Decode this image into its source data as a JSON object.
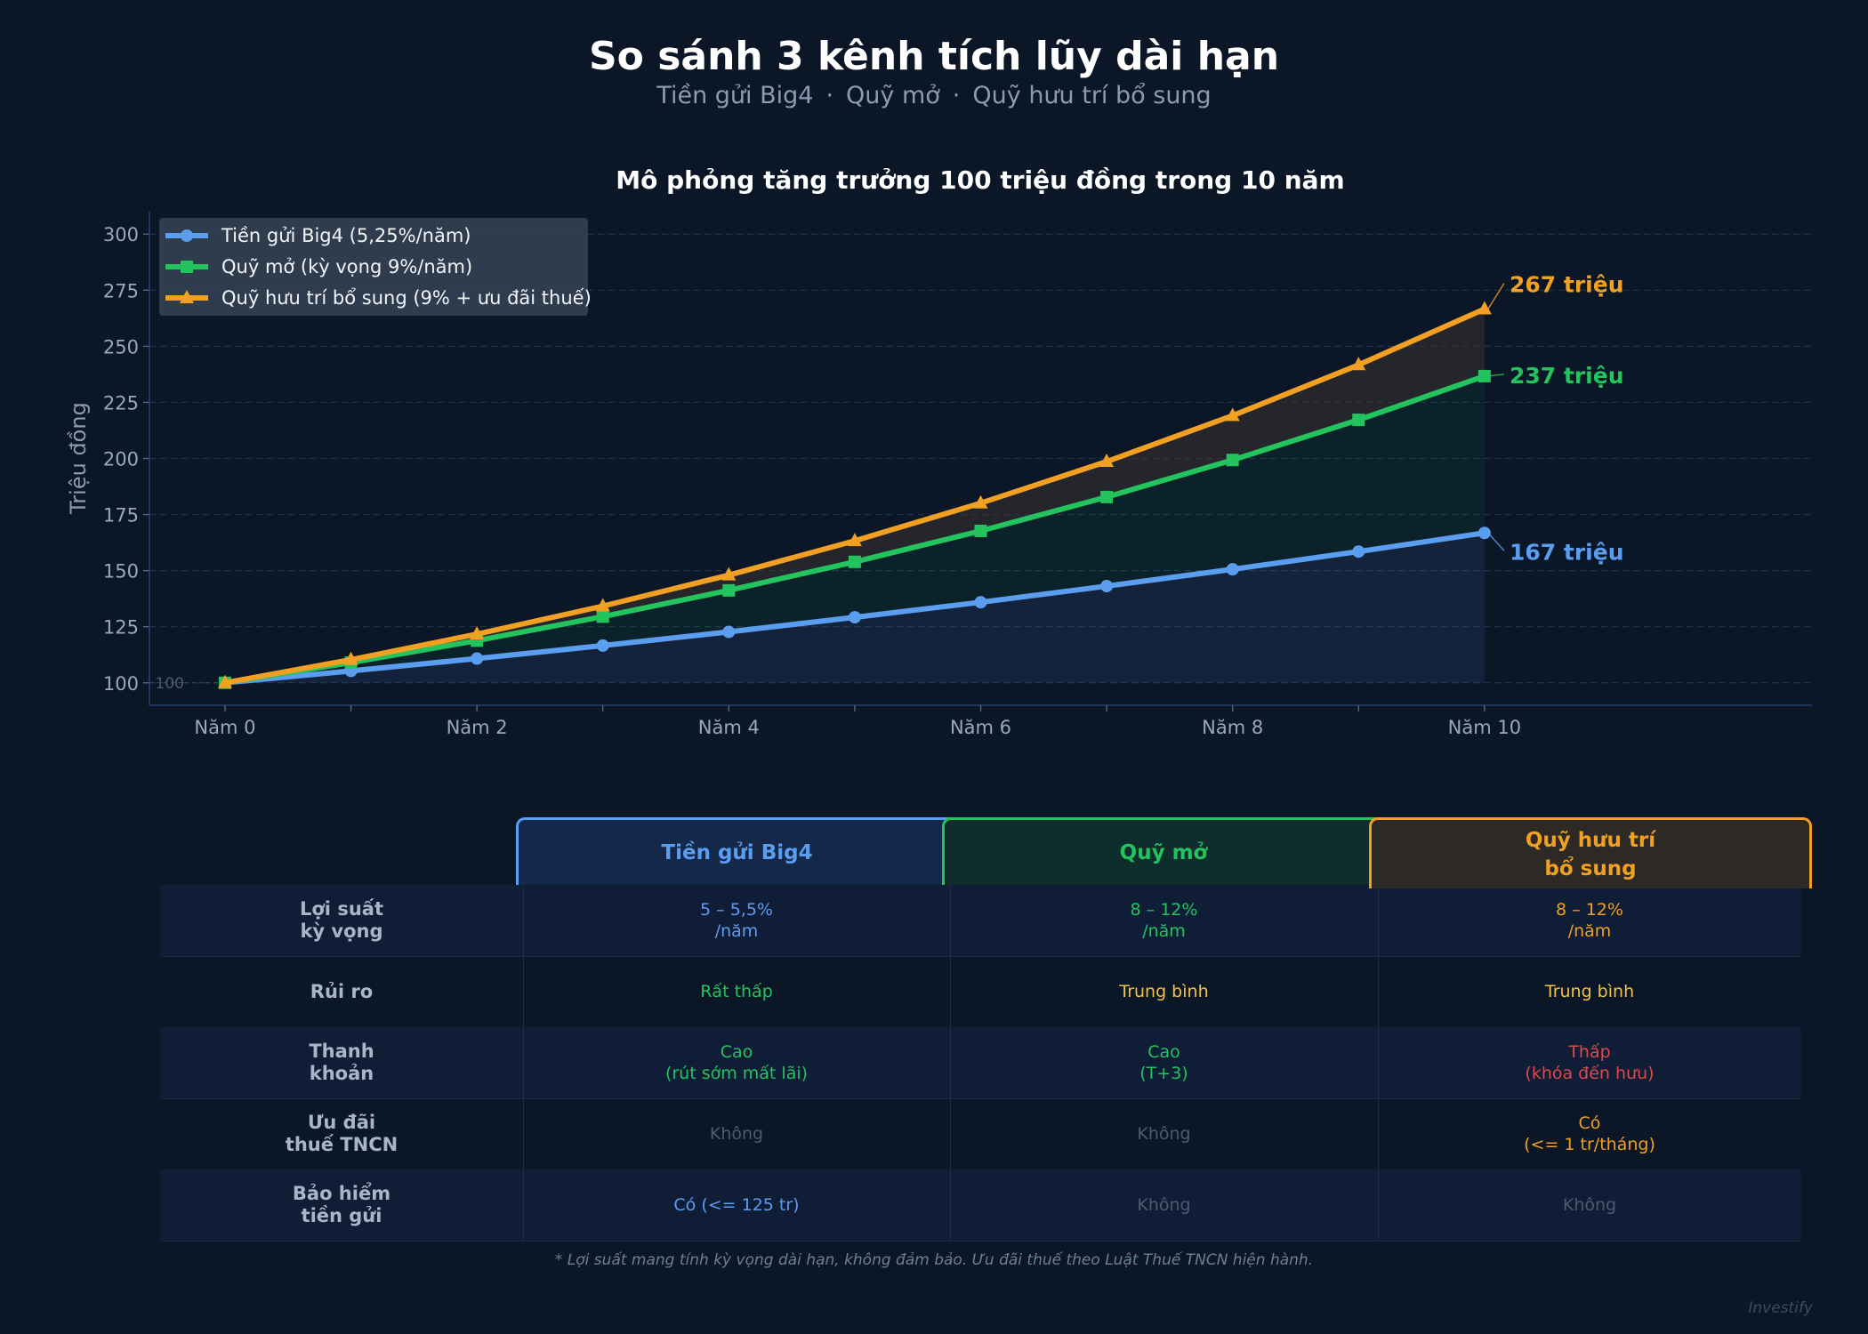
{
  "header": {
    "title": "So sánh 3 kênh tích lũy dài hạn",
    "subtitle_parts": [
      "Tiền gửi Big4",
      "Quỹ mở",
      "Quỹ hưu trí bổ sung"
    ],
    "separator": "·"
  },
  "chart_data": {
    "type": "line",
    "title": "Mô phỏng tăng trưởng 100 triệu đồng trong 10 năm",
    "ylabel": "Triệu đồng",
    "xlabel": "",
    "x": [
      0,
      1,
      2,
      3,
      4,
      5,
      6,
      7,
      8,
      9,
      10
    ],
    "x_tick_labels": {
      "0": "Năm 0",
      "2": "Năm 2",
      "4": "Năm 4",
      "6": "Năm 6",
      "8": "Năm 8",
      "10": "Năm 10"
    },
    "xlim": [
      -0.6,
      12.6
    ],
    "ylim": [
      90,
      310
    ],
    "y_ticks": [
      100,
      125,
      150,
      175,
      200,
      225,
      250,
      275,
      300
    ],
    "grid": true,
    "legend_position": "top-left",
    "baseline_label": "100",
    "series": [
      {
        "name": "Tiền gửi Big4  (5,25%/năm)",
        "color": "#5b9ef0",
        "marker": "circle",
        "values": [
          100,
          105.3,
          110.8,
          116.6,
          122.7,
          129.2,
          135.9,
          143.1,
          150.6,
          158.5,
          166.8
        ],
        "end_label": "167 triệu"
      },
      {
        "name": "Quỹ mở  (kỳ vọng 9%/năm)",
        "color": "#23c35e",
        "marker": "square",
        "values": [
          100,
          109,
          118.8,
          129.5,
          141.2,
          153.9,
          167.7,
          182.8,
          199.3,
          217.2,
          236.7
        ],
        "end_label": "237 triệu"
      },
      {
        "name": "Quỹ hưu trí bổ sung  (9% + ưu đãi thuế)",
        "color": "#f2a023",
        "marker": "triangle",
        "values": [
          100,
          110.3,
          121.7,
          134.2,
          148.0,
          163.3,
          180.1,
          198.6,
          219.1,
          241.7,
          266.6
        ],
        "end_label": "267 triệu"
      }
    ]
  },
  "comparison_table": {
    "columns": [
      {
        "label": "Tiền gửi Big4",
        "color": "#5b9ef0",
        "bg": "#14284a"
      },
      {
        "label": "Quỹ mở",
        "color": "#23c35e",
        "bg": "#0d2e2c"
      },
      {
        "label": "Quỹ hưu trí\nbổ sung",
        "color": "#f2a023",
        "bg": "#2d2a25"
      }
    ],
    "rows": [
      {
        "label": "Lợi suất\nkỳ vọng",
        "cells": [
          {
            "text": "5 – 5,5%\n/năm",
            "color": "#5b9ef0"
          },
          {
            "text": "8 – 12%\n/năm",
            "color": "#23c35e"
          },
          {
            "text": "8 – 12%\n/năm",
            "color": "#f2a023"
          }
        ]
      },
      {
        "label": "Rủi ro",
        "cells": [
          {
            "text": "Rất thấp",
            "color": "#23c35e"
          },
          {
            "text": "Trung bình",
            "color": "#f2c14a"
          },
          {
            "text": "Trung bình",
            "color": "#f2c14a"
          }
        ]
      },
      {
        "label": "Thanh\nkhoản",
        "cells": [
          {
            "text": "Cao\n(rút sớm mất lãi)",
            "color": "#23c35e"
          },
          {
            "text": "Cao\n(T+3)",
            "color": "#23c35e"
          },
          {
            "text": "Thấp\n(khóa đến hưu)",
            "color": "#e0484a"
          }
        ]
      },
      {
        "label": "Ưu đãi\nthuế TNCN",
        "cells": [
          {
            "text": "Không",
            "color": "#4d5b70"
          },
          {
            "text": "Không",
            "color": "#4d5b70"
          },
          {
            "text": "Có\n(<= 1 tr/tháng)",
            "color": "#f2a023"
          }
        ]
      },
      {
        "label": "Bảo hiểm\ntiền gửi",
        "cells": [
          {
            "text": "Có (<= 125 tr)",
            "color": "#5b9ef0"
          },
          {
            "text": "Không",
            "color": "#4d5b70"
          },
          {
            "text": "Không",
            "color": "#4d5b70"
          }
        ]
      }
    ]
  },
  "footnote": "* Lợi suất mang tính kỳ vọng dài hạn, không đảm bảo. Ưu đãi thuế theo Luật Thuế TNCN hiện hành.",
  "watermark": "Investify"
}
